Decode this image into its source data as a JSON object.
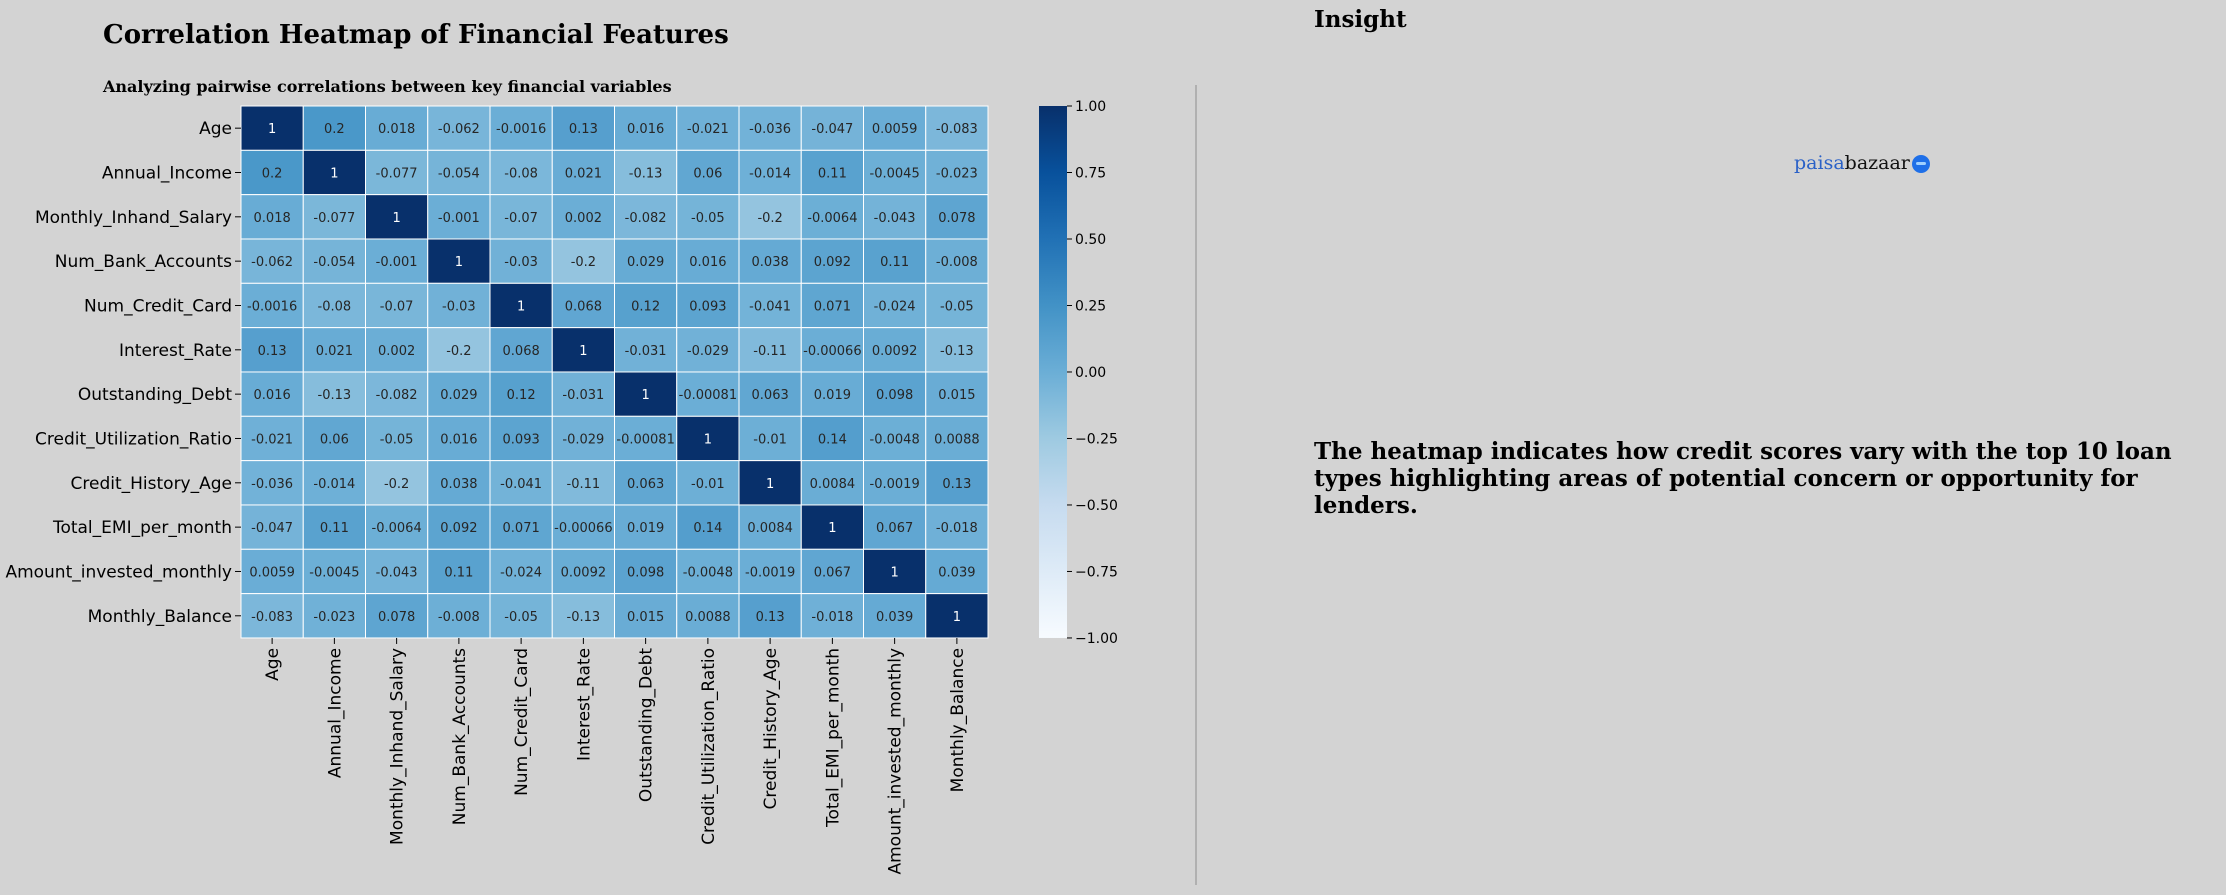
{
  "chart_data": {
    "type": "heatmap",
    "title": "Correlation Heatmap of Financial Features",
    "subtitle": "Analyzing pairwise correlations between key financial variables",
    "variables": [
      "Age",
      "Annual_Income",
      "Monthly_Inhand_Salary",
      "Num_Bank_Accounts",
      "Num_Credit_Card",
      "Interest_Rate",
      "Outstanding_Debt",
      "Credit_Utilization_Ratio",
      "Credit_History_Age",
      "Total_EMI_per_month",
      "Amount_invested_monthly",
      "Monthly_Balance"
    ],
    "matrix": [
      [
        "1",
        "0.2",
        "0.018",
        "-0.062",
        "-0.0016",
        "0.13",
        "0.016",
        "-0.021",
        "-0.036",
        "-0.047",
        "0.0059",
        "-0.083"
      ],
      [
        "0.2",
        "1",
        "-0.077",
        "-0.054",
        "-0.08",
        "0.021",
        "-0.13",
        "0.06",
        "-0.014",
        "0.11",
        "-0.0045",
        "-0.023"
      ],
      [
        "0.018",
        "-0.077",
        "1",
        "-0.001",
        "-0.07",
        "0.002",
        "-0.082",
        "-0.05",
        "-0.2",
        "-0.0064",
        "-0.043",
        "0.078"
      ],
      [
        "-0.062",
        "-0.054",
        "-0.001",
        "1",
        "-0.03",
        "-0.2",
        "0.029",
        "0.016",
        "0.038",
        "0.092",
        "0.11",
        "-0.008"
      ],
      [
        "-0.0016",
        "-0.08",
        "-0.07",
        "-0.03",
        "1",
        "0.068",
        "0.12",
        "0.093",
        "-0.041",
        "0.071",
        "-0.024",
        "-0.05"
      ],
      [
        "0.13",
        "0.021",
        "0.002",
        "-0.2",
        "0.068",
        "1",
        "-0.031",
        "-0.029",
        "-0.11",
        "-0.00066",
        "0.0092",
        "-0.13"
      ],
      [
        "0.016",
        "-0.13",
        "-0.082",
        "0.029",
        "0.12",
        "-0.031",
        "1",
        "-0.00081",
        "0.063",
        "0.019",
        "0.098",
        "0.015"
      ],
      [
        "-0.021",
        "0.06",
        "-0.05",
        "0.016",
        "0.093",
        "-0.029",
        "-0.00081",
        "1",
        "-0.01",
        "0.14",
        "-0.0048",
        "0.0088"
      ],
      [
        "-0.036",
        "-0.014",
        "-0.2",
        "0.038",
        "-0.041",
        "-0.11",
        "0.063",
        "-0.01",
        "1",
        "0.0084",
        "-0.0019",
        "0.13"
      ],
      [
        "-0.047",
        "0.11",
        "-0.0064",
        "0.092",
        "0.071",
        "-0.00066",
        "0.019",
        "0.14",
        "0.0084",
        "1",
        "0.067",
        "-0.018"
      ],
      [
        "0.0059",
        "-0.0045",
        "-0.043",
        "0.11",
        "-0.024",
        "0.0092",
        "0.098",
        "-0.0048",
        "-0.0019",
        "0.067",
        "1",
        "0.039"
      ],
      [
        "-0.083",
        "-0.023",
        "0.078",
        "-0.008",
        "-0.05",
        "-0.13",
        "0.015",
        "0.0088",
        "0.13",
        "-0.018",
        "0.039",
        "1"
      ]
    ],
    "colorbar": {
      "range": [
        -1,
        1
      ],
      "ticks": [
        "1.00",
        "0.75",
        "0.50",
        "0.25",
        "0.00",
        "−0.25",
        "−0.50",
        "−0.75",
        "−1.00"
      ]
    },
    "colormap": "Blues",
    "annotations": true
  },
  "insight": {
    "title": "Insight",
    "logo_part1": "paisa",
    "logo_part2": "bazaar",
    "text": "The heatmap indicates how credit scores vary with the top 10 loan types highlighting areas of potential concern or opportunity for lenders."
  }
}
